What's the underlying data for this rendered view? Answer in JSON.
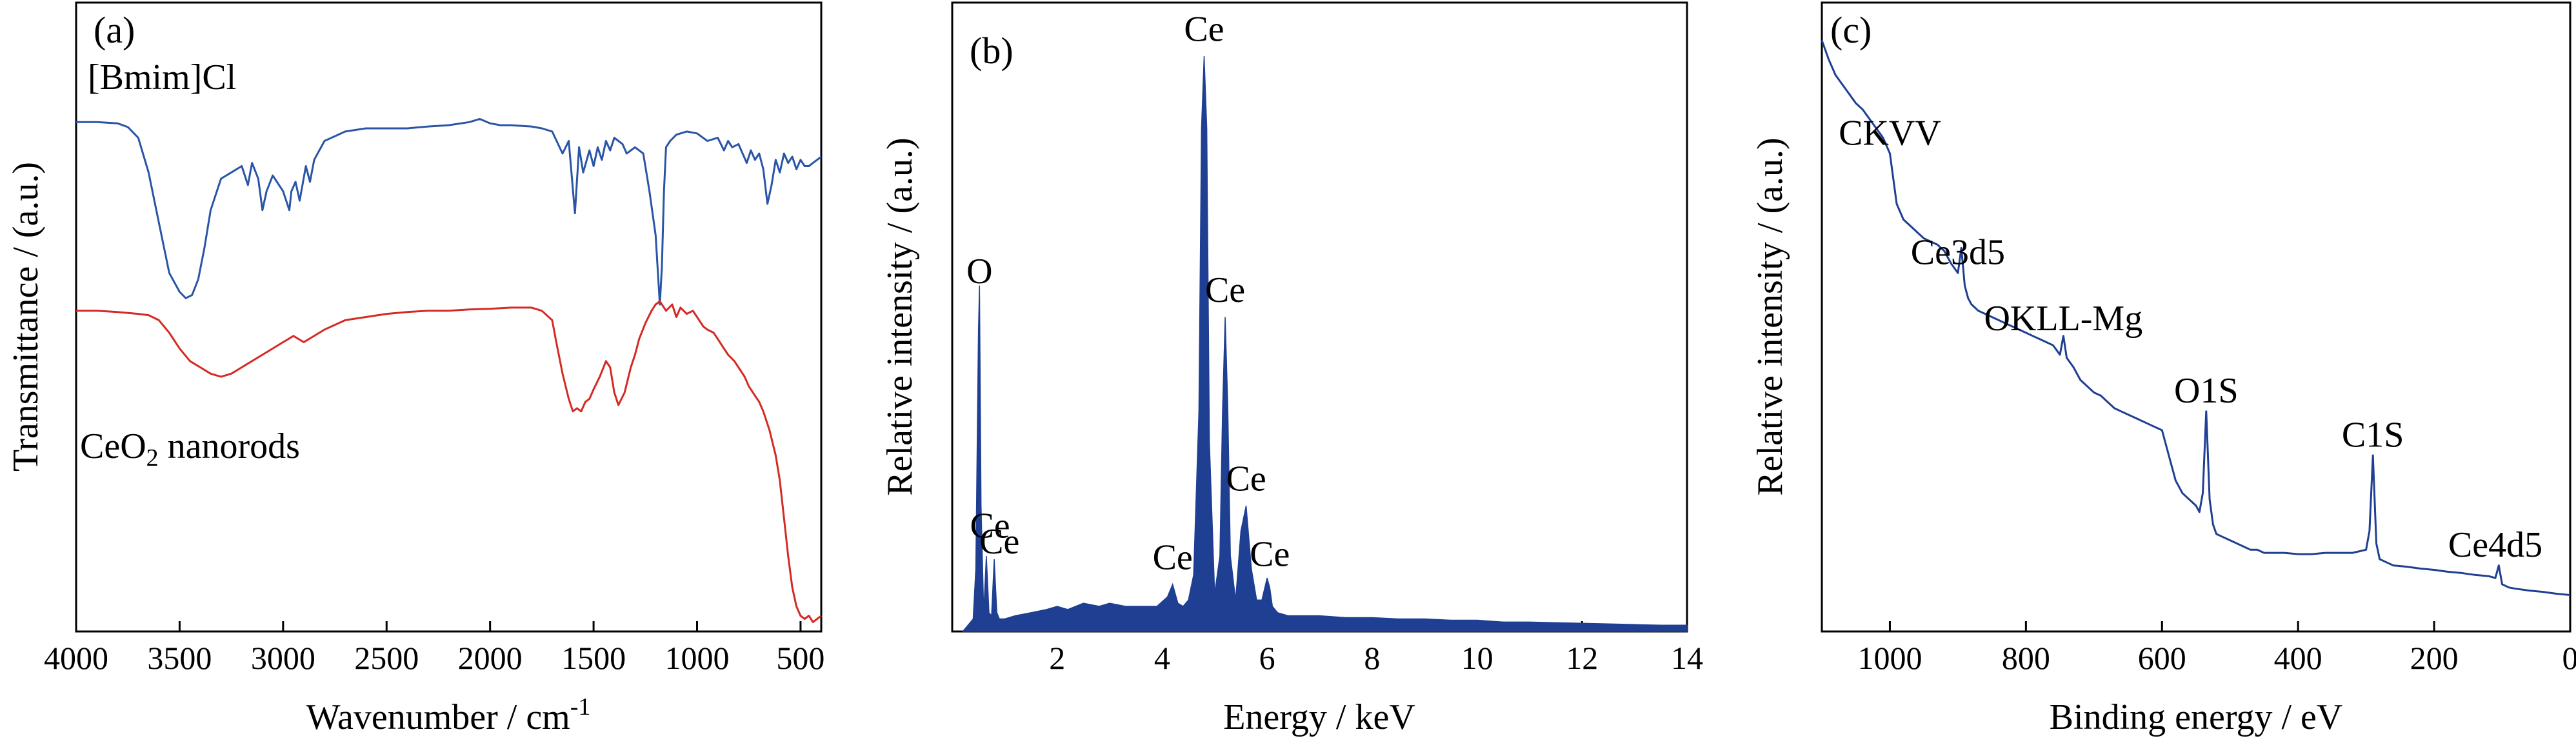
{
  "chart_data": [
    {
      "panel": "(a)",
      "type": "line",
      "xlabel": "Wavenumber / cm",
      "xlabel_sup": "-1",
      "ylabel": "Transmittance / (a.u.)",
      "xlim": [
        4000,
        400
      ],
      "x_reversed": true,
      "ylim": [
        0,
        100
      ],
      "y_ticks_visible": false,
      "xticks": [
        4000,
        3500,
        3000,
        2500,
        2000,
        1500,
        1000,
        500
      ],
      "grid": false,
      "series": [
        {
          "name": "[Bmim]Cl",
          "color": "#2a55a6",
          "x": [
            4000,
            3900,
            3800,
            3750,
            3700,
            3650,
            3600,
            3550,
            3500,
            3470,
            3440,
            3410,
            3380,
            3350,
            3300,
            3250,
            3200,
            3170,
            3150,
            3120,
            3100,
            3080,
            3050,
            3000,
            2970,
            2960,
            2940,
            2920,
            2890,
            2870,
            2850,
            2800,
            2700,
            2600,
            2500,
            2400,
            2300,
            2200,
            2100,
            2050,
            2000,
            1950,
            1900,
            1850,
            1800,
            1750,
            1700,
            1650,
            1620,
            1590,
            1570,
            1550,
            1520,
            1500,
            1480,
            1460,
            1440,
            1420,
            1400,
            1380,
            1360,
            1340,
            1300,
            1260,
            1230,
            1200,
            1180,
            1170,
            1160,
            1150,
            1130,
            1100,
            1050,
            1000,
            950,
            900,
            870,
            850,
            830,
            800,
            780,
            760,
            740,
            720,
            700,
            680,
            660,
            640,
            620,
            600,
            580,
            560,
            540,
            520,
            500,
            480,
            460,
            440,
            420,
            400
          ],
          "y": [
            81.0,
            81.0,
            80.8,
            80.2,
            78.5,
            73.0,
            65.0,
            57.0,
            54.0,
            53.0,
            53.5,
            56.0,
            61.0,
            67.0,
            72.0,
            73.0,
            74.0,
            71.0,
            74.5,
            72.0,
            67.0,
            70.0,
            72.5,
            70.0,
            67.0,
            70.0,
            71.5,
            68.5,
            74.0,
            71.5,
            75.0,
            78.0,
            79.5,
            80.0,
            80.0,
            80.0,
            80.3,
            80.5,
            81.0,
            81.5,
            80.8,
            80.5,
            80.5,
            80.4,
            80.3,
            80.0,
            79.5,
            76.0,
            78.0,
            66.5,
            77.0,
            73.0,
            76.5,
            74.0,
            77.0,
            75.0,
            78.0,
            76.5,
            78.5,
            78.0,
            77.5,
            76.0,
            77.0,
            76.0,
            70.0,
            63.0,
            52.0,
            58.0,
            70.0,
            77.0,
            78.0,
            79.0,
            79.5,
            79.2,
            78.0,
            78.5,
            76.5,
            78.0,
            77.0,
            77.5,
            76.0,
            74.5,
            76.5,
            75.0,
            76.0,
            73.5,
            68.0,
            71.0,
            75.0,
            73.0,
            76.0,
            74.5,
            75.5,
            73.5,
            75.0,
            74.0,
            74.0,
            74.5,
            75.0,
            75.5
          ]
        },
        {
          "name": "CeO2 nanorods",
          "name_parts": {
            "base": "CeO",
            "sub": "2",
            "rest": " nanorods"
          },
          "color": "#d42a23",
          "x": [
            4000,
            3900,
            3800,
            3700,
            3650,
            3600,
            3550,
            3500,
            3450,
            3400,
            3350,
            3300,
            3250,
            3200,
            3100,
            3000,
            2950,
            2900,
            2800,
            2700,
            2600,
            2500,
            2400,
            2300,
            2200,
            2100,
            2000,
            1900,
            1800,
            1750,
            1700,
            1680,
            1650,
            1620,
            1600,
            1580,
            1560,
            1540,
            1520,
            1500,
            1470,
            1440,
            1420,
            1400,
            1380,
            1350,
            1320,
            1300,
            1280,
            1250,
            1220,
            1200,
            1180,
            1150,
            1120,
            1100,
            1080,
            1050,
            1020,
            1000,
            970,
            950,
            920,
            900,
            870,
            850,
            820,
            800,
            770,
            750,
            720,
            700,
            680,
            650,
            620,
            600,
            580,
            560,
            540,
            520,
            500,
            480,
            460,
            440,
            420,
            400
          ],
          "y": [
            51.0,
            51.0,
            50.8,
            50.5,
            50.3,
            49.5,
            47.5,
            45.0,
            43.0,
            42.0,
            41.0,
            40.5,
            41.0,
            42.0,
            44.0,
            46.0,
            47.0,
            46.0,
            48.0,
            49.5,
            50.0,
            50.5,
            50.8,
            51.0,
            51.0,
            51.2,
            51.3,
            51.5,
            51.5,
            51.0,
            49.5,
            46.0,
            41.0,
            37.0,
            35.0,
            35.5,
            35.0,
            36.5,
            37.0,
            38.5,
            40.5,
            43.0,
            42.0,
            38.0,
            36.0,
            38.0,
            42.0,
            44.0,
            46.5,
            49.0,
            51.0,
            52.0,
            52.5,
            51.0,
            52.0,
            50.0,
            51.5,
            50.5,
            51.0,
            50.0,
            48.5,
            48.0,
            47.5,
            46.5,
            45.0,
            44.0,
            43.0,
            42.0,
            40.5,
            39.0,
            37.5,
            36.5,
            35.0,
            32.0,
            28.0,
            24.0,
            18.0,
            12.0,
            7.0,
            4.0,
            2.5,
            2.0,
            2.5,
            1.5,
            2.0,
            2.5
          ]
        }
      ]
    },
    {
      "panel": "(b)",
      "type": "area",
      "xlabel": "Energy / keV",
      "ylabel": "Relative intensity / (a.u.)",
      "xlim": [
        0,
        14
      ],
      "ylim": [
        0,
        100
      ],
      "y_ticks_visible": false,
      "xticks": [
        2,
        4,
        6,
        8,
        10,
        12,
        14
      ],
      "grid": false,
      "series": [
        {
          "name": "",
          "color": "#1f3f93",
          "x": [
            0.2,
            0.3,
            0.4,
            0.45,
            0.5,
            0.52,
            0.55,
            0.6,
            0.65,
            0.7,
            0.75,
            0.8,
            0.85,
            0.9,
            1.0,
            1.2,
            1.5,
            1.8,
            2.0,
            2.2,
            2.5,
            2.8,
            3.0,
            3.3,
            3.6,
            3.9,
            4.1,
            4.2,
            4.3,
            4.4,
            4.5,
            4.6,
            4.7,
            4.75,
            4.8,
            4.85,
            4.9,
            5.0,
            5.1,
            5.15,
            5.2,
            5.25,
            5.3,
            5.4,
            5.5,
            5.6,
            5.7,
            5.8,
            5.9,
            6.0,
            6.05,
            6.1,
            6.2,
            6.4,
            6.6,
            6.8,
            7.0,
            7.5,
            8.0,
            8.5,
            9.0,
            9.5,
            10.0,
            10.5,
            11.0,
            11.5,
            12.0,
            12.5,
            13.0,
            13.5,
            14.0
          ],
          "y": [
            0,
            1.0,
            2.0,
            10.0,
            48.0,
            55.0,
            20.0,
            3.0,
            12.0,
            3.0,
            2.5,
            11.5,
            3.0,
            2.0,
            2.0,
            2.5,
            3.0,
            3.5,
            4.0,
            3.5,
            4.5,
            4.0,
            4.5,
            4.0,
            4.0,
            4.0,
            5.5,
            7.5,
            4.5,
            4.0,
            5.0,
            9.0,
            35.0,
            80.0,
            91.5,
            80.0,
            30.0,
            6.0,
            12.0,
            35.0,
            50.0,
            36.0,
            12.0,
            5.0,
            16.0,
            20.0,
            10.0,
            5.0,
            5.0,
            8.5,
            7.0,
            4.0,
            3.0,
            2.5,
            2.5,
            2.5,
            2.5,
            2.2,
            2.2,
            2.0,
            2.0,
            1.8,
            1.8,
            1.5,
            1.5,
            1.4,
            1.3,
            1.2,
            1.1,
            1.0,
            1.0
          ]
        }
      ],
      "annotations": [
        {
          "text": "O",
          "x": 0.52,
          "y": 55.0
        },
        {
          "text": "Ce",
          "x": 0.72,
          "y": 14.5
        },
        {
          "text": "Ce",
          "x": 0.9,
          "y": 12.0
        },
        {
          "text": "Ce",
          "x": 4.2,
          "y": 9.5
        },
        {
          "text": "Ce",
          "x": 4.8,
          "y": 93.5
        },
        {
          "text": "Ce",
          "x": 5.2,
          "y": 52.0
        },
        {
          "text": "Ce",
          "x": 5.6,
          "y": 22.0
        },
        {
          "text": "Ce",
          "x": 6.05,
          "y": 10.0
        }
      ]
    },
    {
      "panel": "(c)",
      "type": "line",
      "xlabel": "Binding energy / eV",
      "ylabel": "Relative intensity / (a.u.)",
      "xlim": [
        1100,
        0
      ],
      "x_reversed": true,
      "ylim": [
        0,
        100
      ],
      "y_ticks_visible": false,
      "xticks": [
        1000,
        800,
        600,
        400,
        200,
        0
      ],
      "grid": false,
      "series": [
        {
          "name": "",
          "color": "#1f3f93",
          "x": [
            1100,
            1090,
            1080,
            1070,
            1060,
            1050,
            1040,
            1030,
            1020,
            1010,
            1000,
            990,
            980,
            970,
            960,
            950,
            940,
            930,
            920,
            910,
            900,
            895,
            890,
            885,
            880,
            875,
            870,
            860,
            850,
            840,
            830,
            820,
            810,
            800,
            790,
            780,
            770,
            760,
            750,
            745,
            740,
            730,
            720,
            710,
            700,
            690,
            680,
            670,
            660,
            650,
            640,
            630,
            620,
            610,
            600,
            590,
            580,
            570,
            560,
            550,
            545,
            540,
            535,
            530,
            525,
            520,
            510,
            500,
            490,
            480,
            470,
            460,
            450,
            440,
            420,
            400,
            380,
            360,
            340,
            320,
            300,
            295,
            290,
            285,
            280,
            270,
            260,
            240,
            220,
            200,
            180,
            160,
            140,
            120,
            110,
            105,
            100,
            90,
            80,
            60,
            40,
            20,
            0
          ],
          "y": [
            94.0,
            91.0,
            88.5,
            87.0,
            85.5,
            84.0,
            83.0,
            81.5,
            80.0,
            78.5,
            76.0,
            68.0,
            65.5,
            64.5,
            63.5,
            62.5,
            62.0,
            61.5,
            60.5,
            58.5,
            57.0,
            61.0,
            55.0,
            53.0,
            52.0,
            51.5,
            51.0,
            50.5,
            50.0,
            49.5,
            49.0,
            48.5,
            48.0,
            47.5,
            47.0,
            46.5,
            46.0,
            45.5,
            44.0,
            47.0,
            43.5,
            42.0,
            40.0,
            39.0,
            38.0,
            37.5,
            36.5,
            35.5,
            35.0,
            34.5,
            34.0,
            33.5,
            33.0,
            32.5,
            32.0,
            28.0,
            24.0,
            22.0,
            21.0,
            20.0,
            19.0,
            22.0,
            35.0,
            21.0,
            17.0,
            15.5,
            15.0,
            14.5,
            14.0,
            13.5,
            13.0,
            13.0,
            12.5,
            12.5,
            12.5,
            12.3,
            12.3,
            12.5,
            12.5,
            12.5,
            13.0,
            16.0,
            28.0,
            14.0,
            11.5,
            11.0,
            10.5,
            10.3,
            10.0,
            9.8,
            9.5,
            9.3,
            9.0,
            8.8,
            8.5,
            10.5,
            7.5,
            7.0,
            6.8,
            6.5,
            6.3,
            6.0,
            5.8
          ]
        }
      ],
      "annotations": [
        {
          "text": "CKVV",
          "x": 1000,
          "y": 77.0
        },
        {
          "text": "Ce3d5",
          "x": 900,
          "y": 58.0
        },
        {
          "text": "OKLL-Mg",
          "x": 745,
          "y": 47.5
        },
        {
          "text": "O1S",
          "x": 535,
          "y": 36.0
        },
        {
          "text": "C1S",
          "x": 290,
          "y": 29.0
        },
        {
          "text": "Ce4d5",
          "x": 110,
          "y": 11.5
        }
      ]
    }
  ]
}
